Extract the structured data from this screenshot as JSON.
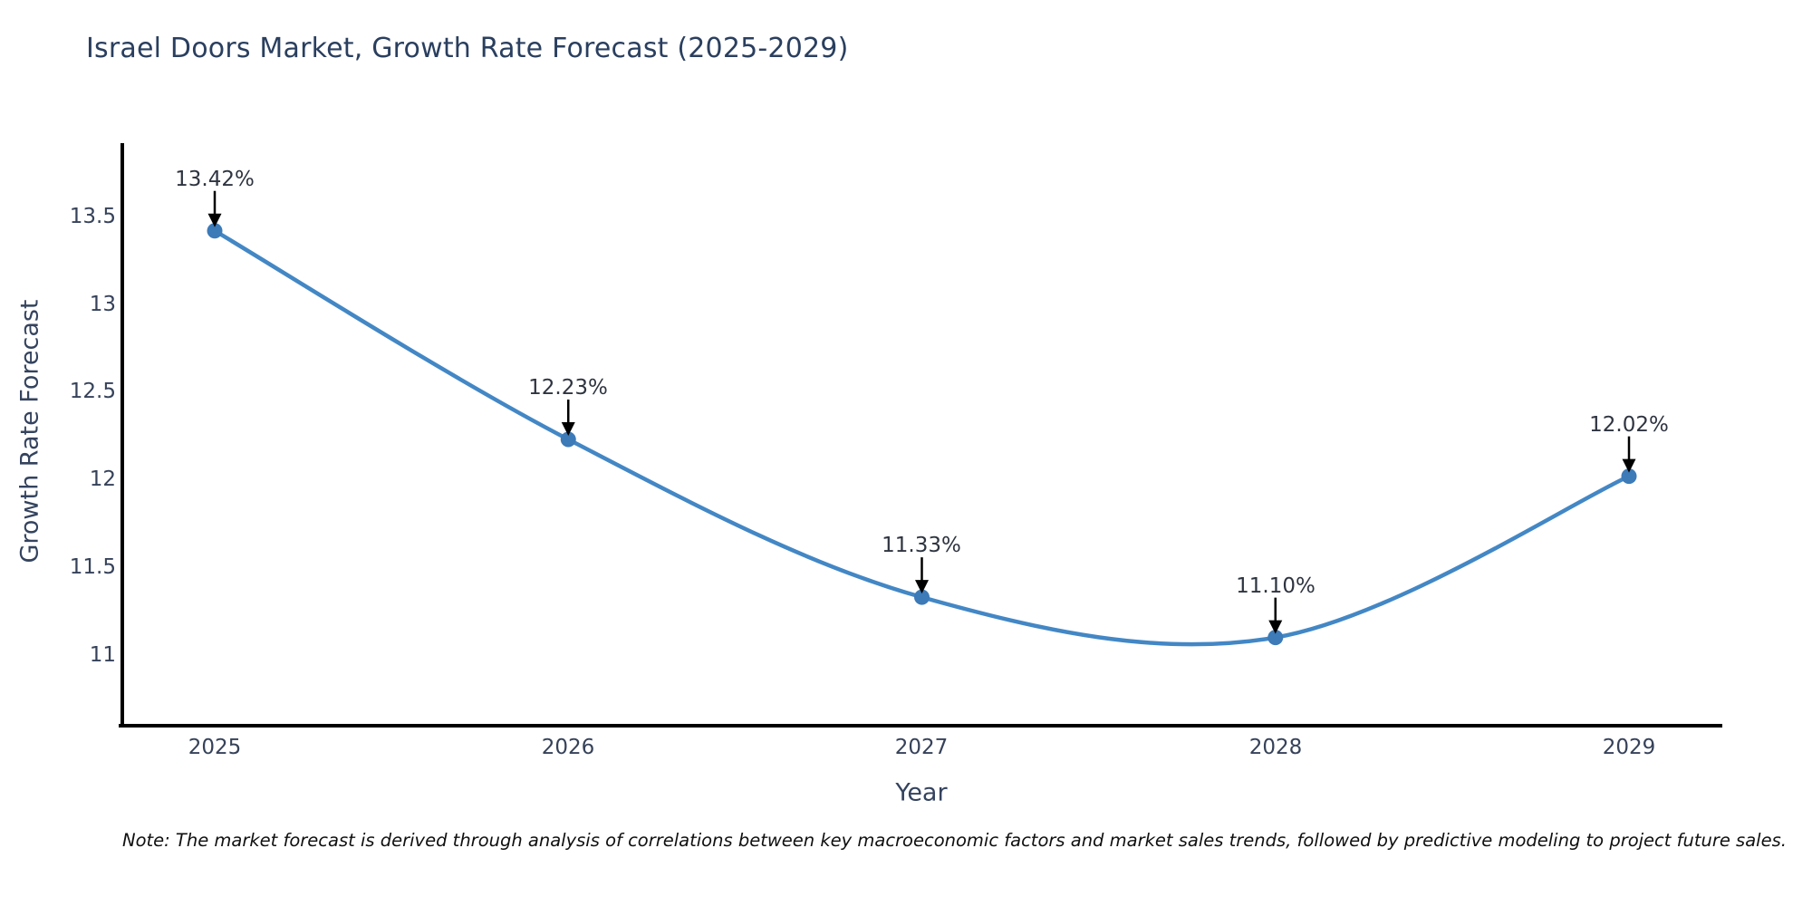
{
  "title": "Israel Doors Market, Growth Rate Forecast (2025-2029)",
  "note": "Note: The market forecast is derived through analysis of correlations between key macroeconomic factors and market sales trends, followed by predictive modeling to project future sales.",
  "chart_data": {
    "type": "line",
    "title": "Israel Doors Market, Growth Rate Forecast (2025-2029)",
    "xlabel": "Year",
    "ylabel": "Growth Rate Forecast",
    "x": [
      2025,
      2026,
      2027,
      2028,
      2029
    ],
    "values": [
      13.42,
      12.23,
      11.33,
      11.1,
      12.02
    ],
    "labels": [
      "13.42%",
      "12.23%",
      "11.33%",
      "11.10%",
      "12.02%"
    ],
    "xticks": [
      "2025",
      "2026",
      "2027",
      "2028",
      "2029"
    ],
    "yticks": [
      "13.5",
      "13",
      "12.5",
      "12",
      "11.5",
      "11"
    ],
    "ytick_values": [
      13.5,
      13.0,
      12.5,
      12.0,
      11.5,
      11.0
    ],
    "ylim": [
      10.55,
      13.92
    ],
    "grid": false,
    "legend": "none",
    "line_color": "#4387c5",
    "marker_color": "#3c7ab8",
    "axis_color": "#000000",
    "annotation_arrow_color": "#000000"
  }
}
